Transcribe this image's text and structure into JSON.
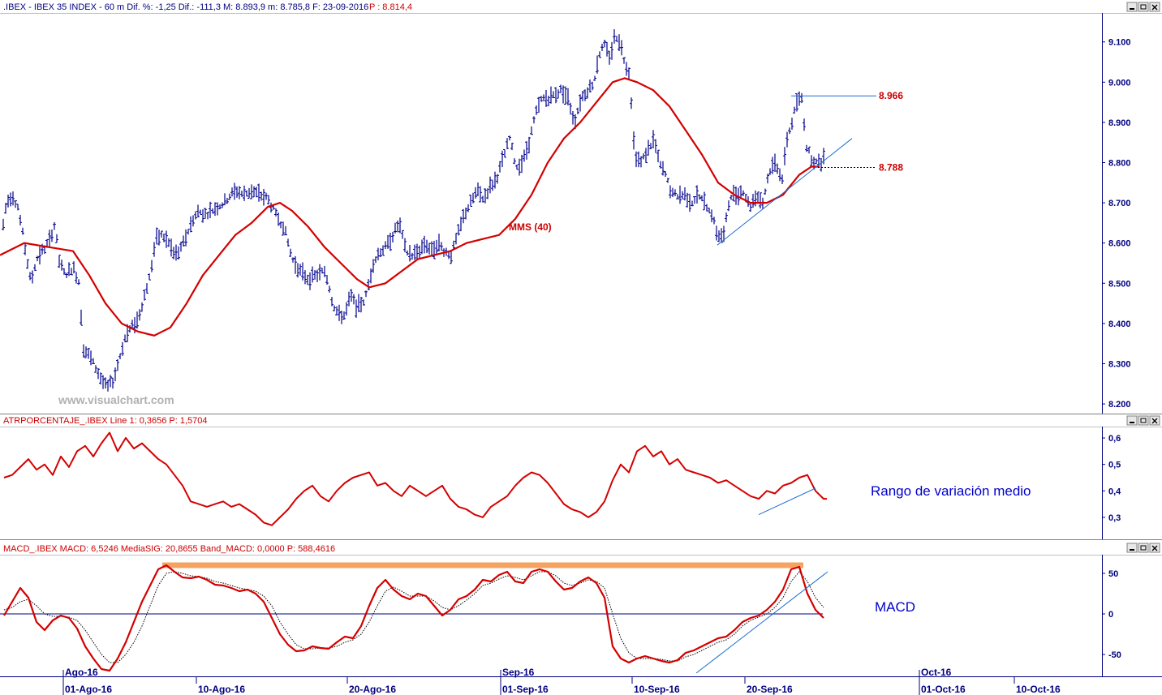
{
  "colors": {
    "axis": "#000080",
    "price_bar": "#00008b",
    "sma": "#d40000",
    "atr": "#d40000",
    "macd": "#d40000",
    "signal": "#000000",
    "zero_line": "#000080",
    "trendline": "#1e6fd0",
    "orange_band": "#f4a460",
    "header_bg": "#ffffff"
  },
  "window_buttons": [
    "minimize-icon",
    "restore-icon",
    "close-icon"
  ],
  "chart_data": [
    {
      "type": "bar",
      "panel": "price",
      "title": ".IBEX - IBEX 35 INDEX - 60 m Dif. %: -1,25 Dif.: -111,3 M: 8.893,9 m: 8.785,8 F: 23-09-2016",
      "title_p": "P : 8.814,4",
      "ylim": [
        8180,
        9170
      ],
      "yticks": [
        "9.100",
        "9.000",
        "8.900",
        "8.800",
        "8.700",
        "8.600",
        "8.500",
        "8.400",
        "8.300",
        "8.200"
      ],
      "ytick_values": [
        9100,
        9000,
        8900,
        8800,
        8700,
        8600,
        8500,
        8400,
        8300,
        8200
      ],
      "sma_label": "MMS (40)",
      "watermark": "www.visualchart.com",
      "levels": [
        {
          "label": "8.966",
          "value": 8966
        },
        {
          "label": "8.788",
          "value": 8788
        }
      ],
      "price_path": [
        [
          0,
          8590
        ],
        [
          8,
          8700
        ],
        [
          15,
          8720
        ],
        [
          22,
          8690
        ],
        [
          30,
          8600
        ],
        [
          38,
          8500
        ],
        [
          45,
          8560
        ],
        [
          52,
          8580
        ],
        [
          60,
          8600
        ],
        [
          68,
          8650
        ],
        [
          72,
          8560
        ],
        [
          80,
          8520
        ],
        [
          90,
          8540
        ],
        [
          98,
          8500
        ],
        [
          102,
          8340
        ],
        [
          110,
          8320
        ],
        [
          118,
          8290
        ],
        [
          125,
          8260
        ],
        [
          132,
          8240
        ],
        [
          140,
          8260
        ],
        [
          148,
          8320
        ],
        [
          155,
          8370
        ],
        [
          162,
          8390
        ],
        [
          170,
          8410
        ],
        [
          178,
          8470
        ],
        [
          185,
          8520
        ],
        [
          192,
          8610
        ],
        [
          200,
          8620
        ],
        [
          208,
          8600
        ],
        [
          215,
          8570
        ],
        [
          222,
          8580
        ],
        [
          230,
          8620
        ],
        [
          238,
          8660
        ],
        [
          245,
          8680
        ],
        [
          252,
          8670
        ],
        [
          260,
          8680
        ],
        [
          268,
          8690
        ],
        [
          276,
          8700
        ],
        [
          284,
          8720
        ],
        [
          292,
          8730
        ],
        [
          300,
          8720
        ],
        [
          310,
          8730
        ],
        [
          320,
          8720
        ],
        [
          330,
          8710
        ],
        [
          340,
          8670
        ],
        [
          350,
          8640
        ],
        [
          360,
          8560
        ],
        [
          370,
          8530
        ],
        [
          380,
          8510
        ],
        [
          390,
          8520
        ],
        [
          400,
          8530
        ],
        [
          405,
          8500
        ],
        [
          410,
          8450
        ],
        [
          418,
          8420
        ],
        [
          425,
          8420
        ],
        [
          432,
          8470
        ],
        [
          440,
          8440
        ],
        [
          450,
          8460
        ],
        [
          460,
          8550
        ],
        [
          468,
          8580
        ],
        [
          476,
          8590
        ],
        [
          484,
          8620
        ],
        [
          492,
          8650
        ],
        [
          500,
          8580
        ],
        [
          508,
          8570
        ],
        [
          516,
          8580
        ],
        [
          524,
          8600
        ],
        [
          532,
          8580
        ],
        [
          540,
          8600
        ],
        [
          548,
          8580
        ],
        [
          556,
          8570
        ],
        [
          564,
          8620
        ],
        [
          572,
          8670
        ],
        [
          580,
          8700
        ],
        [
          588,
          8730
        ],
        [
          596,
          8710
        ],
        [
          604,
          8740
        ],
        [
          612,
          8760
        ],
        [
          620,
          8810
        ],
        [
          628,
          8860
        ],
        [
          636,
          8790
        ],
        [
          644,
          8800
        ],
        [
          652,
          8850
        ],
        [
          660,
          8920
        ],
        [
          668,
          8960
        ],
        [
          676,
          8960
        ],
        [
          684,
          8970
        ],
        [
          692,
          8980
        ],
        [
          700,
          8960
        ],
        [
          708,
          8900
        ],
        [
          716,
          8960
        ],
        [
          724,
          8980
        ],
        [
          732,
          9000
        ],
        [
          738,
          9070
        ],
        [
          745,
          9090
        ],
        [
          752,
          9060
        ],
        [
          758,
          9120
        ],
        [
          764,
          9100
        ],
        [
          770,
          9050
        ],
        [
          776,
          9020
        ],
        [
          782,
          8820
        ],
        [
          790,
          8800
        ],
        [
          798,
          8830
        ],
        [
          806,
          8860
        ],
        [
          812,
          8800
        ],
        [
          820,
          8770
        ],
        [
          828,
          8720
        ],
        [
          836,
          8720
        ],
        [
          844,
          8720
        ],
        [
          852,
          8700
        ],
        [
          860,
          8720
        ],
        [
          868,
          8700
        ],
        [
          876,
          8680
        ],
        [
          884,
          8620
        ],
        [
          892,
          8620
        ],
        [
          900,
          8720
        ],
        [
          908,
          8720
        ],
        [
          916,
          8730
        ],
        [
          924,
          8690
        ],
        [
          932,
          8720
        ],
        [
          940,
          8700
        ],
        [
          948,
          8780
        ],
        [
          956,
          8800
        ],
        [
          964,
          8760
        ],
        [
          970,
          8860
        ],
        [
          976,
          8900
        ],
        [
          982,
          8950
        ],
        [
          988,
          8960
        ],
        [
          994,
          8840
        ],
        [
          1000,
          8810
        ],
        [
          1006,
          8800
        ],
        [
          1012,
          8800
        ],
        [
          1016,
          8820
        ]
      ],
      "sma_path": [
        [
          0,
          8570
        ],
        [
          30,
          8600
        ],
        [
          60,
          8590
        ],
        [
          90,
          8580
        ],
        [
          110,
          8520
        ],
        [
          130,
          8450
        ],
        [
          150,
          8400
        ],
        [
          170,
          8380
        ],
        [
          190,
          8370
        ],
        [
          210,
          8390
        ],
        [
          230,
          8450
        ],
        [
          250,
          8520
        ],
        [
          270,
          8570
        ],
        [
          290,
          8620
        ],
        [
          310,
          8650
        ],
        [
          330,
          8690
        ],
        [
          345,
          8700
        ],
        [
          360,
          8680
        ],
        [
          380,
          8640
        ],
        [
          400,
          8590
        ],
        [
          420,
          8550
        ],
        [
          440,
          8510
        ],
        [
          455,
          8490
        ],
        [
          475,
          8500
        ],
        [
          495,
          8530
        ],
        [
          515,
          8560
        ],
        [
          535,
          8570
        ],
        [
          555,
          8580
        ],
        [
          575,
          8600
        ],
        [
          595,
          8610
        ],
        [
          615,
          8620
        ],
        [
          635,
          8660
        ],
        [
          655,
          8720
        ],
        [
          675,
          8800
        ],
        [
          695,
          8860
        ],
        [
          715,
          8900
        ],
        [
          735,
          8950
        ],
        [
          755,
          9000
        ],
        [
          770,
          9010
        ],
        [
          785,
          9000
        ],
        [
          805,
          8980
        ],
        [
          825,
          8940
        ],
        [
          845,
          8880
        ],
        [
          865,
          8820
        ],
        [
          885,
          8750
        ],
        [
          905,
          8720
        ],
        [
          925,
          8700
        ],
        [
          945,
          8700
        ],
        [
          965,
          8720
        ],
        [
          985,
          8770
        ],
        [
          1000,
          8790
        ],
        [
          1010,
          8790
        ]
      ],
      "trendline": [
        [
          884,
          8595
        ],
        [
          1050,
          8860
        ]
      ],
      "resistance": [
        [
          975,
          8966
        ],
        [
          1080,
          8966
        ]
      ],
      "support_dotted": [
        [
          1008,
          8788
        ],
        [
          1080,
          8788
        ]
      ]
    },
    {
      "type": "line",
      "panel": "atr",
      "title": "ATRPORCENTAJE_.IBEX Line 1: 0,3656 P: 1,5704",
      "annotation": "Rango de variación medio",
      "ylim": [
        0.22,
        0.64
      ],
      "yticks": [
        "0,6",
        "0,5",
        "0,4",
        "0,3"
      ],
      "ytick_values": [
        0.6,
        0.5,
        0.4,
        0.3
      ],
      "x": [
        0,
        10,
        20,
        30,
        40,
        50,
        60,
        70,
        80,
        90,
        100,
        110,
        120,
        130,
        140,
        150,
        160,
        170,
        180,
        190,
        200,
        210,
        220,
        230,
        240,
        250,
        260,
        270,
        280,
        290,
        300,
        310,
        320,
        330,
        340,
        350,
        360,
        370,
        380,
        390,
        400,
        410,
        420,
        430,
        440,
        450,
        460,
        470,
        480,
        490,
        500,
        510,
        520,
        530,
        540,
        550,
        560,
        570,
        580,
        590,
        600,
        610,
        620,
        630,
        640,
        650,
        660,
        670,
        680,
        690,
        700,
        710,
        720,
        730,
        740,
        750,
        760,
        770,
        780,
        790,
        800,
        810,
        820,
        830,
        840,
        850,
        860,
        870,
        880,
        890,
        900,
        910,
        920,
        930,
        940,
        950,
        960,
        970,
        980,
        990,
        1000,
        1010,
        1014
      ],
      "values": [
        0.45,
        0.46,
        0.49,
        0.52,
        0.48,
        0.5,
        0.46,
        0.53,
        0.49,
        0.55,
        0.57,
        0.53,
        0.58,
        0.62,
        0.55,
        0.6,
        0.56,
        0.58,
        0.55,
        0.52,
        0.5,
        0.46,
        0.42,
        0.36,
        0.35,
        0.34,
        0.35,
        0.36,
        0.34,
        0.35,
        0.33,
        0.31,
        0.28,
        0.27,
        0.3,
        0.33,
        0.37,
        0.4,
        0.42,
        0.38,
        0.36,
        0.4,
        0.43,
        0.45,
        0.46,
        0.47,
        0.42,
        0.43,
        0.4,
        0.38,
        0.42,
        0.4,
        0.38,
        0.4,
        0.42,
        0.37,
        0.34,
        0.33,
        0.31,
        0.3,
        0.34,
        0.36,
        0.38,
        0.42,
        0.45,
        0.47,
        0.46,
        0.43,
        0.39,
        0.35,
        0.33,
        0.32,
        0.3,
        0.32,
        0.36,
        0.44,
        0.5,
        0.47,
        0.55,
        0.57,
        0.53,
        0.55,
        0.5,
        0.52,
        0.48,
        0.47,
        0.46,
        0.45,
        0.43,
        0.44,
        0.42,
        0.4,
        0.38,
        0.37,
        0.4,
        0.39,
        0.42,
        0.43,
        0.45,
        0.46,
        0.4,
        0.37,
        0.37
      ],
      "trendline": [
        [
          935,
          0.31
        ],
        [
          1005,
          0.41
        ]
      ]
    },
    {
      "type": "line",
      "panel": "macd",
      "title": "MACD_.IBEX MACD: 6,5246 MediaSIG: 20,8655 Band_MACD: 0,0000 P: 588,4616",
      "annotation": "MACD",
      "ylim": [
        -75,
        72
      ],
      "yticks": [
        "50",
        "0",
        "-50"
      ],
      "ytick_values": [
        50,
        0,
        -50
      ],
      "x": [
        0,
        10,
        20,
        30,
        40,
        50,
        60,
        70,
        80,
        90,
        100,
        110,
        120,
        130,
        140,
        150,
        160,
        170,
        180,
        190,
        200,
        210,
        220,
        230,
        240,
        250,
        260,
        270,
        280,
        290,
        300,
        310,
        320,
        330,
        340,
        350,
        360,
        370,
        380,
        390,
        400,
        410,
        420,
        430,
        440,
        450,
        460,
        470,
        480,
        490,
        500,
        510,
        520,
        530,
        540,
        550,
        560,
        570,
        580,
        590,
        600,
        610,
        620,
        630,
        640,
        650,
        660,
        670,
        680,
        690,
        700,
        710,
        720,
        730,
        740,
        750,
        760,
        770,
        780,
        790,
        800,
        810,
        820,
        830,
        840,
        850,
        860,
        870,
        880,
        890,
        900,
        910,
        920,
        930,
        940,
        950,
        960,
        970,
        980,
        990,
        1000,
        1010
      ],
      "macd": [
        -2,
        15,
        32,
        20,
        -10,
        -20,
        -8,
        -2,
        -5,
        -18,
        -40,
        -55,
        -68,
        -70,
        -55,
        -35,
        -10,
        15,
        35,
        55,
        60,
        52,
        45,
        44,
        46,
        42,
        36,
        35,
        32,
        28,
        30,
        25,
        15,
        -5,
        -25,
        -38,
        -46,
        -45,
        -40,
        -42,
        -43,
        -35,
        -28,
        -30,
        -15,
        10,
        32,
        42,
        30,
        22,
        18,
        25,
        22,
        10,
        -2,
        5,
        18,
        22,
        30,
        42,
        40,
        48,
        52,
        40,
        38,
        52,
        55,
        52,
        40,
        30,
        32,
        40,
        45,
        38,
        20,
        -40,
        -55,
        -60,
        -55,
        -52,
        -55,
        -58,
        -60,
        -57,
        -48,
        -45,
        -40,
        -35,
        -30,
        -28,
        -20,
        -10,
        -5,
        -2,
        5,
        15,
        30,
        55,
        58,
        25,
        5,
        -5
      ],
      "signal": [
        5,
        8,
        15,
        18,
        10,
        0,
        -3,
        -3,
        -4,
        -8,
        -20,
        -35,
        -50,
        -60,
        -60,
        -50,
        -35,
        -15,
        10,
        35,
        50,
        52,
        50,
        47,
        46,
        44,
        40,
        38,
        35,
        32,
        30,
        28,
        22,
        10,
        -10,
        -25,
        -38,
        -43,
        -43,
        -42,
        -42,
        -40,
        -35,
        -32,
        -25,
        -10,
        10,
        28,
        33,
        28,
        22,
        22,
        22,
        16,
        8,
        5,
        10,
        17,
        25,
        35,
        38,
        43,
        47,
        45,
        42,
        47,
        52,
        52,
        47,
        38,
        35,
        38,
        42,
        40,
        32,
        0,
        -30,
        -48,
        -55,
        -55,
        -55,
        -56,
        -58,
        -58,
        -53,
        -50,
        -45,
        -40,
        -35,
        -32,
        -25,
        -15,
        -8,
        -4,
        0,
        8,
        20,
        40,
        52,
        40,
        20,
        8
      ],
      "orange_band": [
        [
          200,
          60
        ],
        [
          990,
          60
        ]
      ],
      "trendline": [
        [
          858,
          -73
        ],
        [
          1020,
          52
        ]
      ]
    }
  ],
  "xaxis": {
    "months": [
      {
        "label": "Ago-16",
        "x": 78
      },
      {
        "label": "Sep-16",
        "x": 617
      },
      {
        "label": "Oct-16",
        "x": 1133
      }
    ],
    "dates": [
      {
        "label": "01-Ago-16",
        "x": 78
      },
      {
        "label": "10-Ago-16",
        "x": 242
      },
      {
        "label": "20-Ago-16",
        "x": 428
      },
      {
        "label": "01-Sep-16",
        "x": 617
      },
      {
        "label": "10-Sep-16",
        "x": 779
      },
      {
        "label": "20-Sep-16",
        "x": 918
      },
      {
        "label": "01-Oct-16",
        "x": 1133
      },
      {
        "label": "10-Oct-16",
        "x": 1250
      }
    ]
  }
}
